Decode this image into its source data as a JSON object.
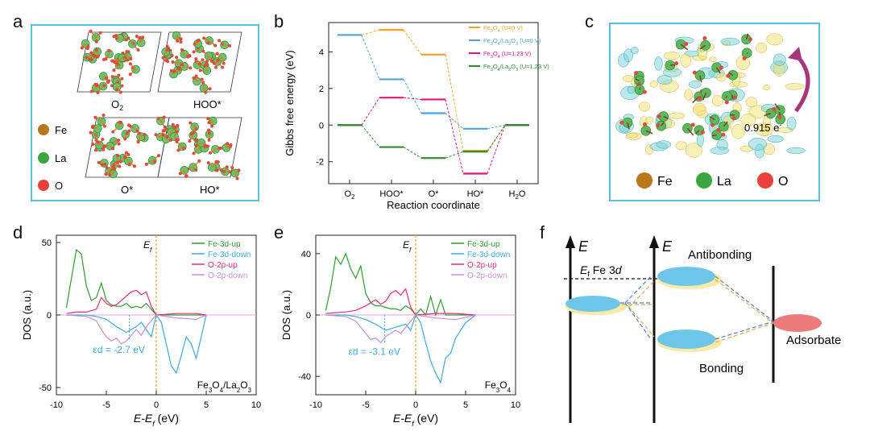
{
  "panels": {
    "a": "a",
    "b": "b",
    "c": "c",
    "d": "d",
    "e": "e",
    "f": "f"
  },
  "panel_a": {
    "labels": [
      "O2",
      "HOO*",
      "O*",
      "HO*"
    ],
    "o2_main": "O",
    "o2_sub": "2",
    "legend": [
      {
        "label": "Fe",
        "color": "#b5781e"
      },
      {
        "label": "La",
        "color": "#3aa640"
      },
      {
        "label": "O",
        "color": "#e8413a"
      }
    ]
  },
  "panel_c": {
    "charge_transfer": "0.915 e",
    "charge_sup": "-",
    "legend": [
      {
        "label": "Fe",
        "color": "#b5781e"
      },
      {
        "label": "La",
        "color": "#3aa640"
      },
      {
        "label": "O",
        "color": "#e8413a"
      }
    ]
  },
  "chart_data": [
    {
      "type": "line",
      "panel": "b",
      "title": "",
      "xlabel": "Reaction coordinate",
      "ylabel": "Gibbs free energy (eV)",
      "categories": [
        "O2",
        "HOO*",
        "O*",
        "HO*",
        "H2O"
      ],
      "category_main": [
        "O",
        "HOO*",
        "O*",
        "HO*",
        "H"
      ],
      "category_sub": [
        "2",
        "",
        "",
        "",
        "2"
      ],
      "category_tail": [
        "",
        "",
        "",
        "",
        "O"
      ],
      "ylim": [
        -3.2,
        5.6
      ],
      "yticks": [
        -2,
        0,
        2,
        4
      ],
      "series": [
        {
          "name": "Fe3O4 (U=0 V)",
          "color": "#f5a32c",
          "values": [
            4.92,
            5.2,
            3.85,
            -1.4,
            0
          ]
        },
        {
          "name": "Fe3O4/La2O3 (U=0 V)",
          "color": "#4ea3d8",
          "values": [
            4.92,
            2.5,
            0.65,
            -0.2,
            0
          ]
        },
        {
          "name": "Fe3O4 (U=1.23 V)",
          "color": "#e0177a",
          "values": [
            0,
            1.5,
            1.4,
            -2.65,
            0
          ]
        },
        {
          "name": "Fe3O4/La2O3 (U=1.23 V)",
          "color": "#2e8b2e",
          "values": [
            0,
            -1.2,
            -1.8,
            -1.45,
            0
          ]
        }
      ]
    },
    {
      "type": "line",
      "panel": "d",
      "title": "",
      "xlabel": "E-Ef (eV)",
      "ylabel": "DOS (a.u.)",
      "ylim": [
        -55,
        55
      ],
      "xlim": [
        -10,
        10
      ],
      "xticks": [
        -10,
        -5,
        0,
        5,
        10
      ],
      "yticks": [
        -50,
        0,
        50
      ],
      "fermi_label": "Ef",
      "d_band_center_label": "εd = -2.7 eV",
      "d_band_center": -2.7,
      "material": "Fe3O4/La2O3",
      "series": [
        {
          "name": "Fe-3d-up",
          "color": "#2e9b2e",
          "x": [
            -9,
            -8.5,
            -8,
            -7.5,
            -7,
            -6.5,
            -6,
            -5.5,
            -5,
            -4.5,
            -4,
            -3.5,
            -3,
            -2.5,
            -2,
            -1.5,
            -1,
            -0.5,
            0,
            1,
            2,
            3,
            4,
            5
          ],
          "values": [
            5,
            25,
            45,
            42,
            20,
            10,
            12,
            22,
            10,
            7,
            6,
            6,
            8,
            5,
            6,
            5,
            8,
            4,
            0,
            0,
            0,
            0,
            0,
            0
          ]
        },
        {
          "name": "Fe-3d-down",
          "color": "#3fa9e0",
          "x": [
            -9,
            -8,
            -7,
            -6,
            -5,
            -4,
            -3,
            -2,
            -1.5,
            -1,
            -0.5,
            0,
            0.5,
            1,
            1.5,
            2,
            2.5,
            3,
            3.5,
            4,
            4.5,
            5
          ],
          "values": [
            0,
            0,
            0,
            -1,
            -3,
            -8,
            -12,
            -8,
            -5,
            -10,
            -15,
            0,
            -5,
            -20,
            -35,
            -40,
            -28,
            -15,
            -20,
            -30,
            -15,
            0
          ]
        },
        {
          "name": "O-2p-up",
          "color": "#e02e7a",
          "x": [
            -9,
            -8,
            -7,
            -6,
            -5.5,
            -5,
            -4.5,
            -4,
            -3.5,
            -3,
            -2.5,
            -2,
            -1.5,
            -1,
            -0.5,
            0,
            2,
            4,
            5
          ],
          "values": [
            1,
            2,
            2,
            4,
            12,
            8,
            6,
            7,
            10,
            13,
            16,
            17,
            14,
            16,
            6,
            0,
            1,
            1,
            0
          ]
        },
        {
          "name": "O-2p-down",
          "color": "#c58fd6",
          "x": [
            -9,
            -7,
            -6,
            -5.5,
            -5,
            -4.5,
            -4,
            -3.5,
            -3,
            -2.5,
            -2,
            -1.5,
            -1,
            -0.5,
            0,
            2,
            4,
            5
          ],
          "values": [
            0,
            -1,
            -4,
            -10,
            -15,
            -18,
            -16,
            -20,
            -18,
            -14,
            -10,
            -14,
            -8,
            -4,
            0,
            -2,
            -3,
            0
          ]
        }
      ]
    },
    {
      "type": "line",
      "panel": "e",
      "title": "",
      "xlabel": "E-Ef (eV)",
      "ylabel": "DOS (a.u.)",
      "ylim": [
        -52,
        52
      ],
      "xlim": [
        -10,
        10
      ],
      "xticks": [
        -10,
        -5,
        0,
        5,
        10
      ],
      "yticks": [
        -40,
        0,
        40
      ],
      "fermi_label": "Ef",
      "d_band_center_label": "εd = -3.1 eV",
      "d_band_center": -3.1,
      "material": "Fe3O4",
      "series": [
        {
          "name": "Fe-3d-up",
          "color": "#2e9b2e",
          "x": [
            -9,
            -8.5,
            -8,
            -7.5,
            -7,
            -6.5,
            -6,
            -5.5,
            -5,
            -4.5,
            -4,
            -3.5,
            -3,
            -2.5,
            -2,
            -1.5,
            -1,
            -0.5,
            0,
            0.5,
            1,
            1.5,
            2,
            2.5,
            3,
            4,
            5,
            6
          ],
          "values": [
            3,
            18,
            38,
            33,
            40,
            30,
            24,
            32,
            14,
            8,
            6,
            6,
            5,
            4,
            4,
            3,
            6,
            4,
            0,
            4,
            0,
            12,
            0,
            10,
            0,
            0,
            0,
            0
          ]
        },
        {
          "name": "Fe-3d-down",
          "color": "#3fa9e0",
          "x": [
            -9,
            -8,
            -7,
            -6,
            -5,
            -4,
            -3,
            -2,
            -1,
            -0.5,
            0,
            0.5,
            1,
            1.5,
            2,
            2.5,
            3,
            3.5,
            4,
            5,
            6
          ],
          "values": [
            0,
            0,
            0,
            -1,
            -3,
            -6,
            -10,
            -8,
            -6,
            -10,
            0,
            -5,
            -18,
            -30,
            -38,
            -44,
            -28,
            -25,
            -15,
            -5,
            0
          ]
        },
        {
          "name": "O-2p-up",
          "color": "#e02e7a",
          "x": [
            -9,
            -7,
            -6,
            -5,
            -4.5,
            -4,
            -3.5,
            -3,
            -2.5,
            -2,
            -1.5,
            -1,
            -0.5,
            0,
            2,
            4,
            6
          ],
          "values": [
            1,
            2,
            3,
            6,
            8,
            10,
            7,
            9,
            14,
            16,
            13,
            17,
            5,
            0,
            1,
            1,
            0
          ]
        },
        {
          "name": "O-2p-down",
          "color": "#c58fd6",
          "x": [
            -9,
            -7,
            -6,
            -5.5,
            -5,
            -4.5,
            -4,
            -3.5,
            -3,
            -2.5,
            -2,
            -1.5,
            -1,
            -0.5,
            0,
            2,
            4,
            6
          ],
          "values": [
            0,
            -1,
            -4,
            -8,
            -12,
            -16,
            -15,
            -18,
            -14,
            -12,
            -10,
            -12,
            -8,
            -4,
            0,
            -2,
            -3,
            0
          ]
        }
      ]
    }
  ],
  "panel_f": {
    "e_label": "E",
    "ef_label": "E",
    "ef_sub": "f",
    "fe3d_label": "Fe 3",
    "fe3d_d": "d",
    "antibonding": "Antibonding",
    "bonding": "Bonding",
    "adsorbate": "Adsorbate"
  }
}
